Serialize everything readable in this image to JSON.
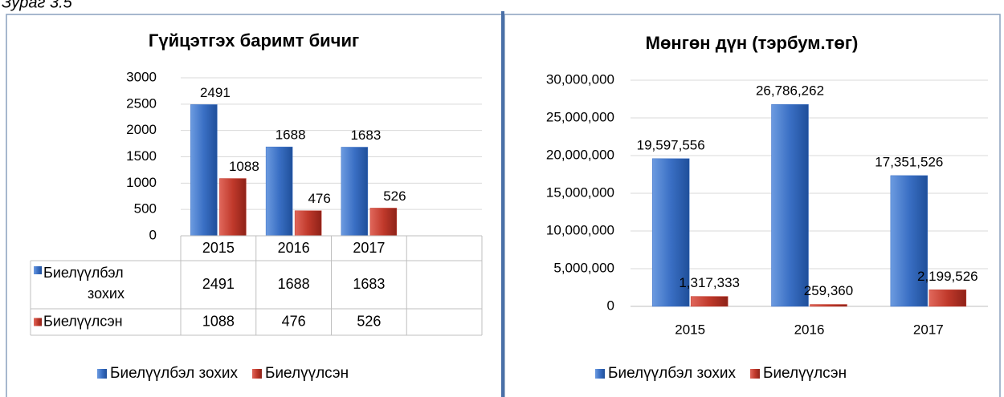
{
  "caption": "Зураг 3.5",
  "chart_data": [
    {
      "type": "bar",
      "title": "Гүйцэтгэх баримт бичиг",
      "categories": [
        "2015",
        "2016",
        "2017",
        null
      ],
      "series": [
        {
          "name": "Биелүүлбэл зохих",
          "color": "#3a6fc4",
          "values": [
            2491,
            1688,
            1683,
            null
          ]
        },
        {
          "name": "Биелүүлсэн",
          "color": "#c0392b",
          "values": [
            1088,
            476,
            526,
            null
          ]
        }
      ],
      "ylim": [
        0,
        3000
      ],
      "yticks": [
        0,
        500,
        1000,
        1500,
        2000,
        2500,
        3000
      ],
      "grid": true,
      "data_table": true,
      "legend": "bottom"
    },
    {
      "type": "bar",
      "title": "Мөнгөн дүн (тэрбум.төг)",
      "categories": [
        "2015",
        "2016",
        "2017"
      ],
      "series": [
        {
          "name": "Биелүүлбэл зохих",
          "color": "#3a6fc4",
          "values": [
            19597556,
            26786262,
            17351526
          ],
          "value_labels": [
            "19,597,556",
            "26,786,262",
            "17,351,526"
          ]
        },
        {
          "name": "Биелүүлсэн",
          "color": "#c0392b",
          "values": [
            1317333,
            259360,
            2199526
          ],
          "value_labels": [
            "1,317,333",
            "259,360",
            "2,199,526"
          ]
        }
      ],
      "ylim": [
        0,
        30000000
      ],
      "yticks": [
        0,
        {
          "value": 5000000,
          "label": "5,000,000"
        },
        {
          "value": 10000000,
          "label": "10,000,000"
        },
        {
          "value": 15000000,
          "label": "15,000,000"
        },
        {
          "value": 20000000,
          "label": "20,000,000"
        },
        {
          "value": 25000000,
          "label": "25,000,000"
        },
        {
          "value": 30000000,
          "label": "30,000,000"
        }
      ],
      "grid": true,
      "data_table": false,
      "legend": "bottom"
    }
  ]
}
